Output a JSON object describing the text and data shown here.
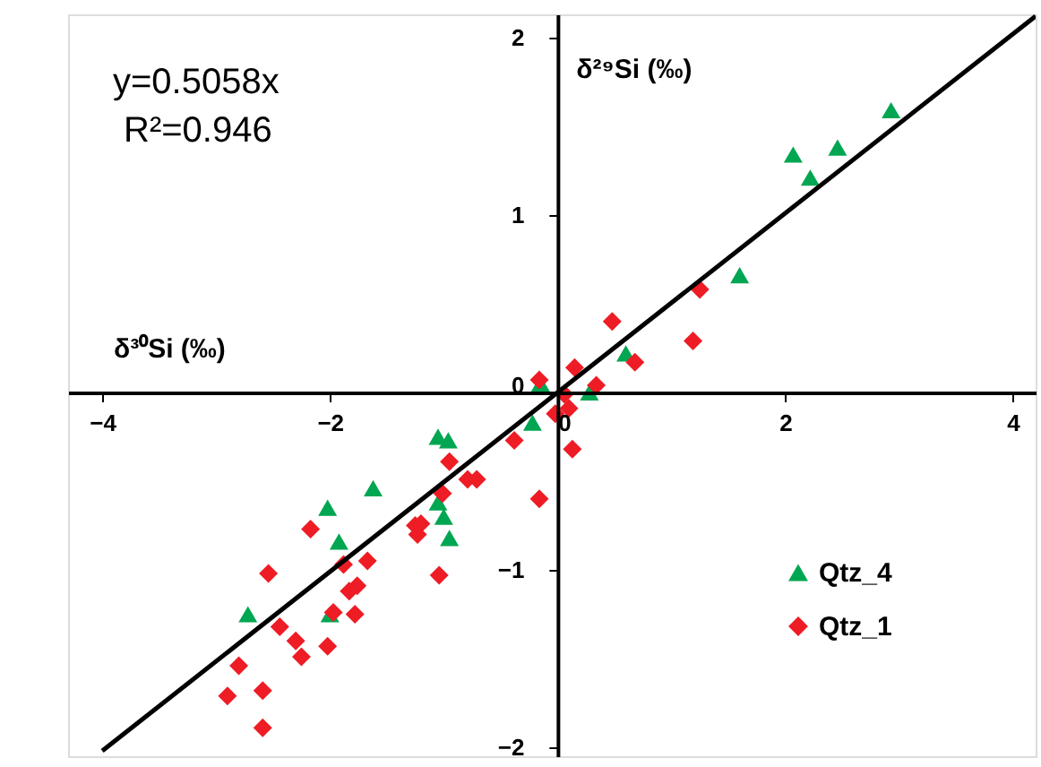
{
  "chart_data": {
    "type": "scatter",
    "xlabel": "δ³⁰Si (‰)",
    "ylabel": "δ²⁹Si (‰)",
    "annotations": [
      "y=0.5058x",
      "R²=0.946"
    ],
    "xlim": [
      -4.3,
      4.2
    ],
    "ylim": [
      -2.05,
      2.13
    ],
    "xticks": [
      -4,
      -2,
      0,
      2,
      4
    ],
    "yticks": [
      -2,
      -1,
      0,
      1,
      2
    ],
    "grid": false,
    "legend": "bottom right",
    "series": [
      {
        "name": "Qtz_4",
        "color": "#00a651",
        "marker": "triangle",
        "x": [
          -1.05,
          -0.96,
          -1.62,
          -2.02,
          -1.92,
          -2.72,
          -2.0,
          -1.05,
          -1.0,
          -0.95,
          -0.22,
          -0.15,
          0.28,
          0.6,
          1.6,
          2.07,
          2.22,
          2.46,
          2.93
        ],
        "values": [
          -0.25,
          -0.27,
          -0.54,
          -0.65,
          -0.84,
          -1.25,
          -1.25,
          -0.62,
          -0.7,
          -0.82,
          -0.17,
          0.05,
          0.0,
          0.22,
          0.66,
          1.34,
          1.21,
          1.38,
          1.59
        ]
      },
      {
        "name": "Qtz_1",
        "color": "#ee1c25",
        "marker": "diamond",
        "x": [
          -0.16,
          0.15,
          0.34,
          0.06,
          -0.02,
          0.1,
          0.13,
          0.48,
          0.68,
          1.19,
          1.25,
          -0.16,
          -0.38,
          -0.95,
          -0.79,
          -0.71,
          -1.01,
          -1.25,
          -1.2,
          -1.23,
          -1.04,
          -2.17,
          -1.88,
          -1.67,
          -1.76,
          -1.83,
          -2.54,
          -1.97,
          -1.78,
          -2.44,
          -2.3,
          -2.25,
          -2.02,
          -2.8,
          -2.9,
          -2.59,
          -2.59
        ],
        "values": [
          0.07,
          0.14,
          0.04,
          -0.01,
          -0.12,
          -0.09,
          -0.32,
          0.4,
          0.17,
          0.29,
          0.58,
          -0.6,
          -0.27,
          -0.39,
          -0.49,
          -0.49,
          -0.57,
          -0.75,
          -0.74,
          -0.8,
          -1.03,
          -0.77,
          -0.97,
          -0.95,
          -1.09,
          -1.12,
          -1.02,
          -1.24,
          -1.25,
          -1.32,
          -1.4,
          -1.49,
          -1.43,
          -1.54,
          -1.71,
          -1.68,
          -1.89
        ]
      },
      {
        "type": "line",
        "color": "#000000",
        "marker": "none",
        "x": [
          -4.0,
          4.2
        ],
        "values": [
          -2.02,
          2.12
        ]
      }
    ]
  }
}
